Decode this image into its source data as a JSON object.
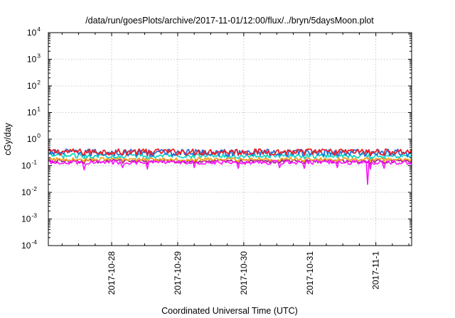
{
  "chart_data": {
    "type": "line",
    "title": "/data/run/goesPlots/archive/2017-11-01/12:00/flux/../bryn/5daysMoon.plot",
    "xlabel": "Coordinated Universal Time (UTC)",
    "ylabel": "cGy/day",
    "yscale": "log",
    "ylim": [
      0.0001,
      10000
    ],
    "xlim": [
      "2017-10-27T01:00",
      "2017-11-01T13:00"
    ],
    "grid": true,
    "y_ticks": [
      {
        "base": "10",
        "exp": "-4",
        "value": 0.0001
      },
      {
        "base": "10",
        "exp": "-3",
        "value": 0.001
      },
      {
        "base": "10",
        "exp": "-2",
        "value": 0.01
      },
      {
        "base": "10",
        "exp": "-1",
        "value": 0.1
      },
      {
        "base": "10",
        "exp": "0",
        "value": 1
      },
      {
        "base": "10",
        "exp": "1",
        "value": 10
      },
      {
        "base": "10",
        "exp": "2",
        "value": 100
      },
      {
        "base": "10",
        "exp": "3",
        "value": 1000
      },
      {
        "base": "10",
        "exp": "4",
        "value": 10000
      }
    ],
    "x_ticks": [
      {
        "label": "2017-10-28",
        "value": "2017-10-28T00:00"
      },
      {
        "label": "2017-10-29",
        "value": "2017-10-29T00:00"
      },
      {
        "label": "2017-10-30",
        "value": "2017-10-30T00:00"
      },
      {
        "label": "2017-10-31",
        "value": "2017-10-31T00:00"
      },
      {
        "label": "2017-11-1",
        "value": "2017-11-01T00:00"
      }
    ],
    "series": [
      {
        "color": "#e8202a",
        "base": 0.34,
        "jitter": 0.1,
        "dips": [
          {
            "time": "2017-10-27T14:00",
            "value": 0.26
          },
          {
            "time": "2017-10-28T04:00",
            "value": 0.27
          },
          {
            "time": "2017-10-28T13:00",
            "value": 0.25
          },
          {
            "time": "2017-10-29T06:00",
            "value": 0.27
          },
          {
            "time": "2017-10-29T22:00",
            "value": 0.26
          },
          {
            "time": "2017-10-30T13:00",
            "value": 0.27
          },
          {
            "time": "2017-10-30T22:00",
            "value": 0.26
          },
          {
            "time": "2017-10-31T10:00",
            "value": 0.27
          },
          {
            "time": "2017-10-31T22:00",
            "value": 0.25
          },
          {
            "time": "2017-11-01T03:00",
            "value": 0.26
          }
        ]
      },
      {
        "color": "#2a6fd8",
        "base": 0.32,
        "jitter": 0.11,
        "dips": [
          {
            "time": "2017-10-27T14:00",
            "value": 0.24
          },
          {
            "time": "2017-10-28T04:00",
            "value": 0.25
          },
          {
            "time": "2017-10-28T13:00",
            "value": 0.23
          },
          {
            "time": "2017-10-29T06:00",
            "value": 0.25
          },
          {
            "time": "2017-10-29T22:00",
            "value": 0.24
          },
          {
            "time": "2017-10-30T13:00",
            "value": 0.25
          },
          {
            "time": "2017-10-30T22:00",
            "value": 0.24
          },
          {
            "time": "2017-10-31T10:00",
            "value": 0.25
          },
          {
            "time": "2017-10-31T22:00",
            "value": 0.23
          },
          {
            "time": "2017-11-01T03:00",
            "value": 0.24
          }
        ]
      },
      {
        "color": "#17d6c4",
        "base": 0.24,
        "jitter": 0.05,
        "dips": [
          {
            "time": "2017-10-27T14:00",
            "value": 0.19
          },
          {
            "time": "2017-10-28T04:00",
            "value": 0.2
          },
          {
            "time": "2017-10-28T13:00",
            "value": 0.18
          },
          {
            "time": "2017-10-29T06:00",
            "value": 0.2
          },
          {
            "time": "2017-10-29T22:00",
            "value": 0.19
          },
          {
            "time": "2017-10-30T13:00",
            "value": 0.2
          },
          {
            "time": "2017-10-30T22:00",
            "value": 0.19
          },
          {
            "time": "2017-10-31T10:00",
            "value": 0.2
          },
          {
            "time": "2017-10-31T22:00",
            "value": 0.18
          },
          {
            "time": "2017-11-01T03:00",
            "value": 0.19
          }
        ]
      },
      {
        "color": "#f0a020",
        "base": 0.175,
        "jitter": 0.03,
        "dips": [
          {
            "time": "2017-10-27T14:00",
            "value": 0.14
          },
          {
            "time": "2017-10-28T04:00",
            "value": 0.145
          },
          {
            "time": "2017-10-28T13:00",
            "value": 0.14
          },
          {
            "time": "2017-10-29T06:00",
            "value": 0.145
          },
          {
            "time": "2017-10-29T22:00",
            "value": 0.14
          },
          {
            "time": "2017-10-30T13:00",
            "value": 0.145
          },
          {
            "time": "2017-10-30T22:00",
            "value": 0.14
          },
          {
            "time": "2017-10-31T10:00",
            "value": 0.145
          },
          {
            "time": "2017-10-31T22:00",
            "value": 0.14
          },
          {
            "time": "2017-11-01T03:00",
            "value": 0.14
          }
        ]
      },
      {
        "color": "#a0208c",
        "base": 0.15,
        "jitter": 0.025,
        "dips": [
          {
            "time": "2017-10-27T14:00",
            "value": 0.12
          },
          {
            "time": "2017-10-28T04:00",
            "value": 0.125
          },
          {
            "time": "2017-10-28T13:00",
            "value": 0.115
          },
          {
            "time": "2017-10-29T06:00",
            "value": 0.125
          },
          {
            "time": "2017-10-29T22:00",
            "value": 0.12
          },
          {
            "time": "2017-10-30T13:00",
            "value": 0.125
          },
          {
            "time": "2017-10-30T22:00",
            "value": 0.12
          },
          {
            "time": "2017-10-31T10:00",
            "value": 0.125
          },
          {
            "time": "2017-10-31T22:00",
            "value": 0.115
          },
          {
            "time": "2017-11-01T03:00",
            "value": 0.12
          }
        ]
      },
      {
        "color": "#ff10ff",
        "base": 0.135,
        "jitter": 0.025,
        "dips": [
          {
            "time": "2017-10-27T14:00",
            "value": 0.07
          },
          {
            "time": "2017-10-28T04:00",
            "value": 0.085
          },
          {
            "time": "2017-10-28T13:00",
            "value": 0.075
          },
          {
            "time": "2017-10-29T06:00",
            "value": 0.085
          },
          {
            "time": "2017-10-29T22:00",
            "value": 0.08
          },
          {
            "time": "2017-10-30T13:00",
            "value": 0.085
          },
          {
            "time": "2017-10-30T22:00",
            "value": 0.08
          },
          {
            "time": "2017-10-31T10:00",
            "value": 0.085
          },
          {
            "time": "2017-10-31T22:00",
            "value": 0.075
          },
          {
            "time": "2017-11-01T03:00",
            "value": 0.08
          },
          {
            "time": "2017-10-31T21:00",
            "value": 0.02
          }
        ]
      }
    ]
  }
}
